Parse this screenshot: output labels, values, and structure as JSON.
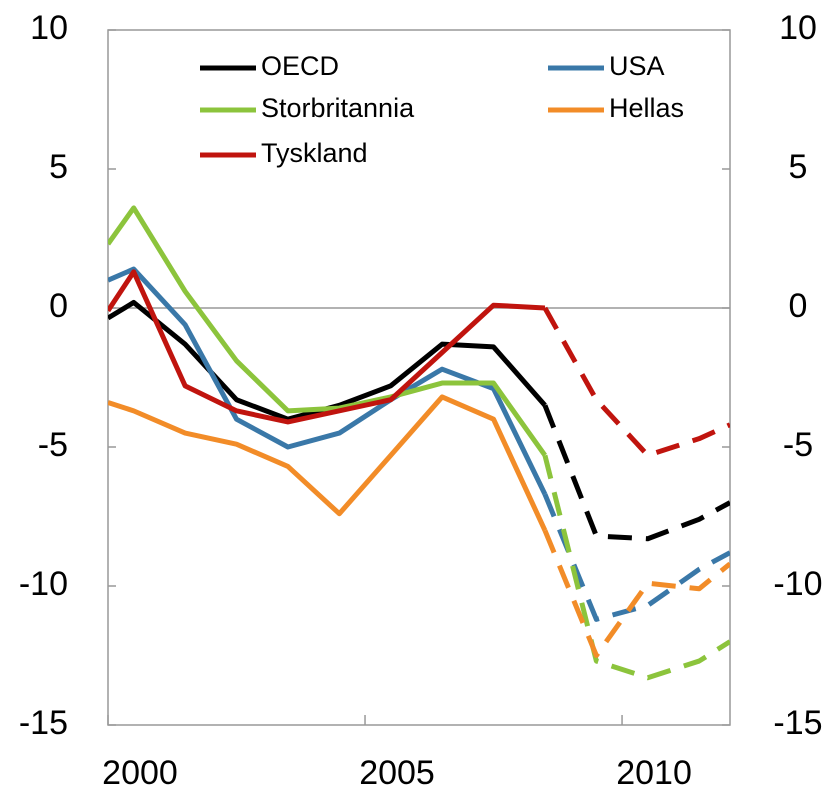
{
  "chart_data": {
    "type": "line",
    "x": [
      2000,
      2000.5,
      2001.5,
      2002.5,
      2003.5,
      2004.5,
      2005.5,
      2006.5,
      2007.5,
      2008.5,
      2009.5,
      2010.5,
      2011.5,
      2012.1
    ],
    "series": [
      {
        "name": "OECD",
        "color": "#000000",
        "values": [
          -0.36,
          0.2,
          -1.3,
          -3.3,
          -4.0,
          -3.5,
          -2.8,
          -1.3,
          -1.4,
          -3.5,
          -8.2,
          -8.3,
          -7.6,
          -7.0
        ]
      },
      {
        "name": "USA",
        "color": "#3a78a8",
        "values": [
          1.0,
          1.4,
          -0.6,
          -4.0,
          -5.0,
          -4.5,
          -3.3,
          -2.2,
          -2.9,
          -6.7,
          -11.2,
          -10.7,
          -9.4,
          -8.8
        ]
      },
      {
        "name": "Storbritannia",
        "color": "#8cc43c",
        "values": [
          2.3,
          3.6,
          0.6,
          -1.9,
          -3.7,
          -3.6,
          -3.2,
          -2.7,
          -2.7,
          -5.3,
          -12.7,
          -13.3,
          -12.7,
          -12.0
        ]
      },
      {
        "name": "Hellas",
        "color": "#f28c28",
        "values": [
          -3.4,
          -3.7,
          -4.5,
          -4.9,
          -5.7,
          -7.4,
          -5.3,
          -3.2,
          -4.0,
          -8.0,
          -12.5,
          -9.9,
          -10.1,
          -9.2
        ]
      },
      {
        "name": "Tyskland",
        "color": "#c0140e",
        "values": [
          -0.1,
          1.3,
          -2.8,
          -3.7,
          -4.1,
          -3.7,
          -3.3,
          -1.6,
          0.1,
          0.0,
          -3.3,
          -5.3,
          -4.7,
          -4.2
        ]
      }
    ],
    "dashed_from_x": 2008.5,
    "xlim": [
      2000,
      2012.1
    ],
    "xticks": [
      2000,
      2005,
      2010
    ],
    "ylim": [
      -15,
      10
    ],
    "yticks": [
      -15,
      -10,
      -5,
      0,
      5,
      10
    ],
    "y2lim": [
      -15,
      10
    ],
    "y2ticks": [
      -15,
      -10,
      -5,
      0,
      5,
      10
    ]
  }
}
